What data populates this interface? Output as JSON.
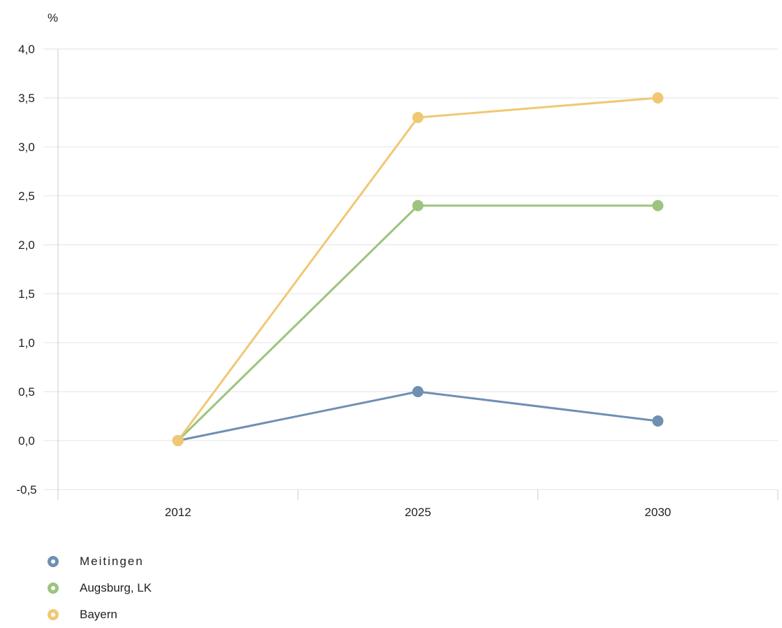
{
  "chart_data": {
    "type": "line",
    "unit_label": "%",
    "categories": [
      "2012",
      "2025",
      "2030"
    ],
    "ylim": [
      -0.5,
      4.0
    ],
    "yticks": [
      "-0,5",
      "0,0",
      "0,5",
      "1,0",
      "1,5",
      "2,0",
      "2,5",
      "3,0",
      "3,5",
      "4,0"
    ],
    "ytick_values": [
      -0.5,
      0,
      0.5,
      1.0,
      1.5,
      2.0,
      2.5,
      3.0,
      3.5,
      4.0
    ],
    "grid": true,
    "legend_position": "bottom-left",
    "series": [
      {
        "name": "Meitingen",
        "color": "#6f8fb3",
        "values": [
          0.0,
          0.5,
          0.2
        ]
      },
      {
        "name": "Augsburg, LK",
        "color": "#9cc47e",
        "values": [
          0.0,
          2.4,
          2.4
        ]
      },
      {
        "name": "Bayern",
        "color": "#f0c873",
        "values": [
          0.0,
          3.3,
          3.5
        ]
      }
    ]
  }
}
